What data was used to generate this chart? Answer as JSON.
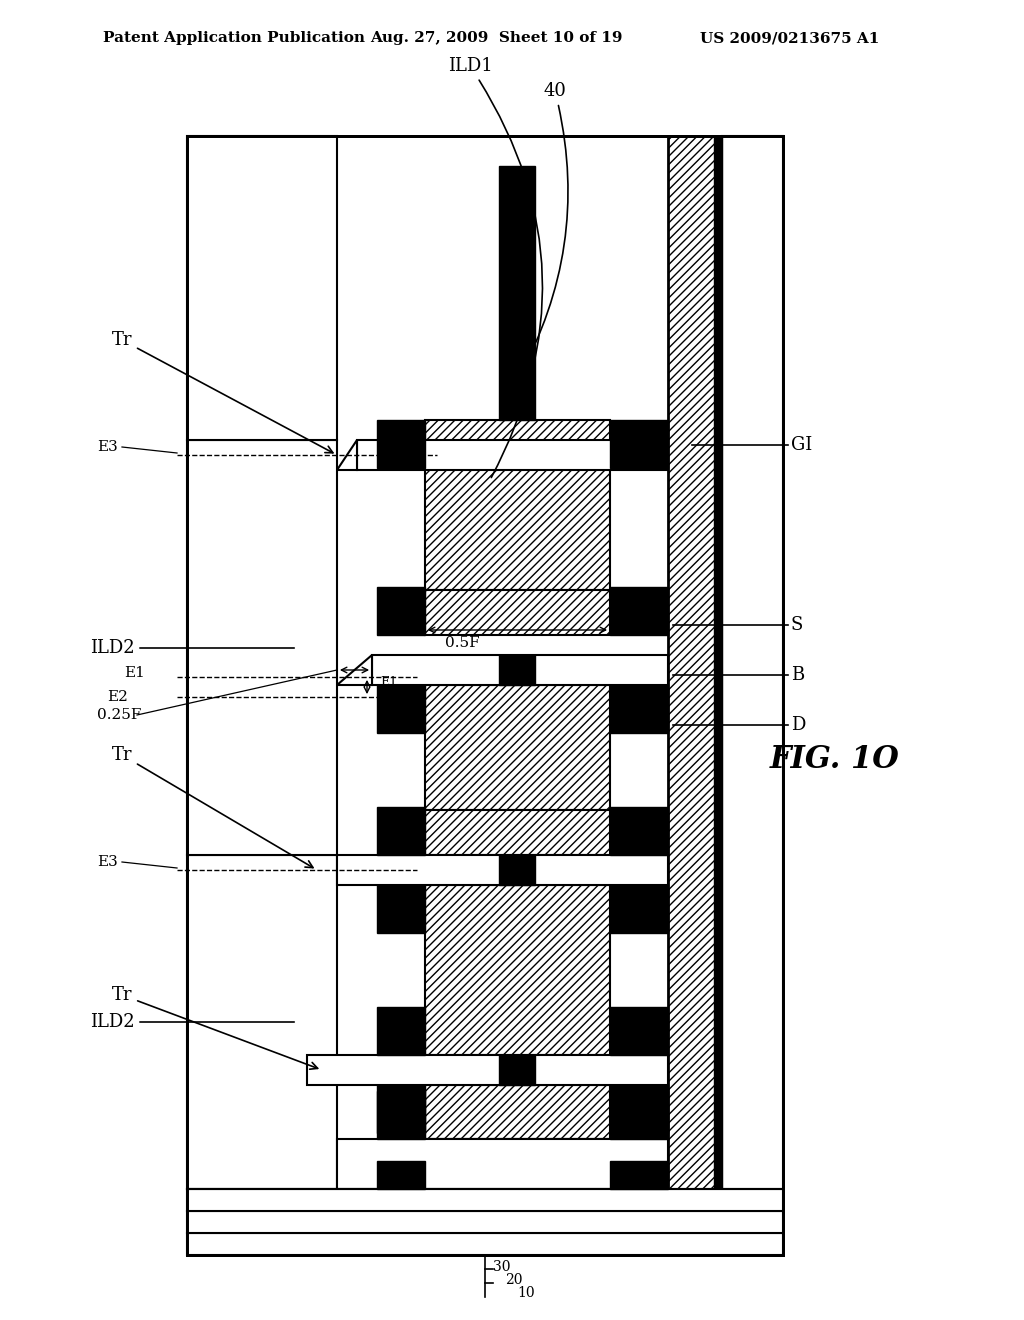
{
  "header_left": "Patent Application Publication",
  "header_mid": "Aug. 27, 2009  Sheet 10 of 19",
  "header_right": "US 2009/0213675 A1",
  "fig_label": "FIG. 1O",
  "bg_color": "#ffffff"
}
